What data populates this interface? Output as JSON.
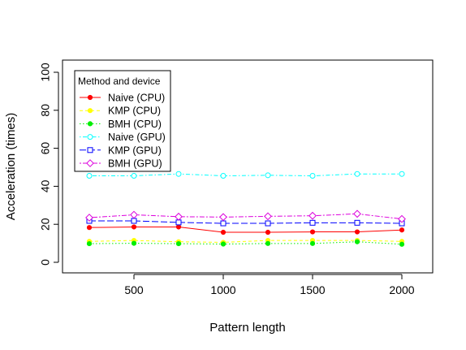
{
  "chart_data": {
    "type": "line",
    "title": "",
    "xlabel": "Pattern length",
    "ylabel": "Acceleration (times)",
    "xlim": [
      250,
      2000
    ],
    "ylim": [
      0,
      100
    ],
    "xticks": [
      500,
      1000,
      1500,
      2000
    ],
    "yticks": [
      0,
      20,
      40,
      60,
      80,
      100
    ],
    "grid": false,
    "legend": {
      "title": "Method and device",
      "position": "top-left"
    },
    "x": [
      250,
      500,
      750,
      1000,
      1250,
      1500,
      1750,
      2000
    ],
    "series": [
      {
        "name": "Naive (CPU)",
        "color": "#ff0000",
        "marker": "filled-circle",
        "dash": "solid",
        "values": [
          18.3,
          18.6,
          18.6,
          15.8,
          15.8,
          16.0,
          16.0,
          17.0
        ]
      },
      {
        "name": "KMP (CPU)",
        "color": "#ffff00",
        "marker": "filled-circle",
        "dash": "dashed",
        "values": [
          11.0,
          11.5,
          10.8,
          10.5,
          11.5,
          11.5,
          11.5,
          11.0
        ]
      },
      {
        "name": "BMH (CPU)",
        "color": "#00ee00",
        "marker": "filled-circle",
        "dash": "dotted",
        "values": [
          9.8,
          10.0,
          9.8,
          9.6,
          9.9,
          9.9,
          10.8,
          9.5
        ]
      },
      {
        "name": "Naive (GPU)",
        "color": "#00ffff",
        "marker": "open-circle",
        "dash": "dotdash",
        "values": [
          45.5,
          45.5,
          46.5,
          45.5,
          45.8,
          45.5,
          46.5,
          46.5
        ]
      },
      {
        "name": "KMP (GPU)",
        "color": "#0000ff",
        "marker": "open-square",
        "dash": "longdash",
        "values": [
          21.8,
          21.8,
          21.0,
          20.5,
          20.5,
          20.8,
          20.8,
          20.5
        ]
      },
      {
        "name": "BMH (GPU)",
        "color": "#dd00dd",
        "marker": "open-diamond",
        "dash": "twodash",
        "values": [
          23.5,
          25.0,
          24.0,
          23.8,
          24.2,
          24.5,
          25.5,
          22.8
        ]
      }
    ]
  }
}
